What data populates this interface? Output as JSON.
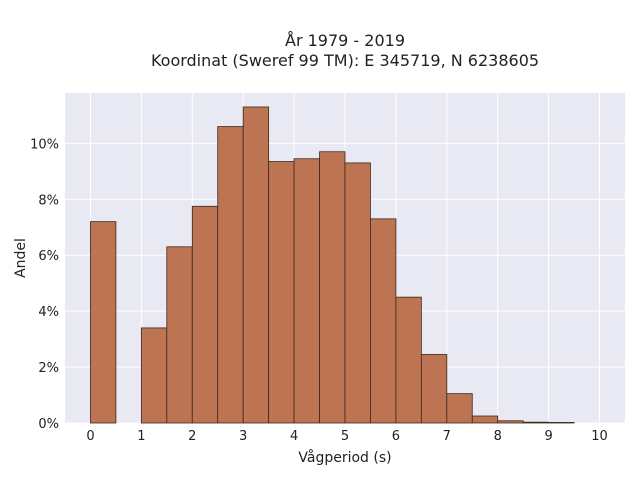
{
  "chart_data": {
    "type": "bar",
    "title_lines": [
      "År 1979 - 2019",
      "Koordinat (Sweref 99 TM): E 345719, N 6238605"
    ],
    "xlabel": "Vågperiod (s)",
    "ylabel": "Andel",
    "bin_width": 0.5,
    "bins": [
      {
        "x0": 0.0,
        "value": 7.2
      },
      {
        "x0": 0.5,
        "value": 0.0
      },
      {
        "x0": 1.0,
        "value": 3.4
      },
      {
        "x0": 1.5,
        "value": 6.3
      },
      {
        "x0": 2.0,
        "value": 7.75
      },
      {
        "x0": 2.5,
        "value": 10.6
      },
      {
        "x0": 3.0,
        "value": 11.3
      },
      {
        "x0": 3.5,
        "value": 9.35
      },
      {
        "x0": 4.0,
        "value": 9.45
      },
      {
        "x0": 4.5,
        "value": 9.7
      },
      {
        "x0": 5.0,
        "value": 9.3
      },
      {
        "x0": 5.5,
        "value": 7.3
      },
      {
        "x0": 6.0,
        "value": 4.5
      },
      {
        "x0": 6.5,
        "value": 2.45
      },
      {
        "x0": 7.0,
        "value": 1.05
      },
      {
        "x0": 7.5,
        "value": 0.25
      },
      {
        "x0": 8.0,
        "value": 0.08
      },
      {
        "x0": 8.5,
        "value": 0.03
      },
      {
        "x0": 9.0,
        "value": 0.02
      }
    ],
    "x_ticks": [
      0,
      1,
      2,
      3,
      4,
      5,
      6,
      7,
      8,
      9,
      10
    ],
    "y_ticks": [
      0,
      2,
      4,
      6,
      8,
      10
    ],
    "y_tick_suffix": "%",
    "xlim": [
      -0.5,
      10.5
    ],
    "ylim": [
      0,
      11.8
    ],
    "grid": true,
    "colors": {
      "plot_bg": "#e8e9f2",
      "grid": "#ffffff",
      "bar_fill": "#bc7452",
      "bar_stroke": "#3a2a20"
    }
  }
}
